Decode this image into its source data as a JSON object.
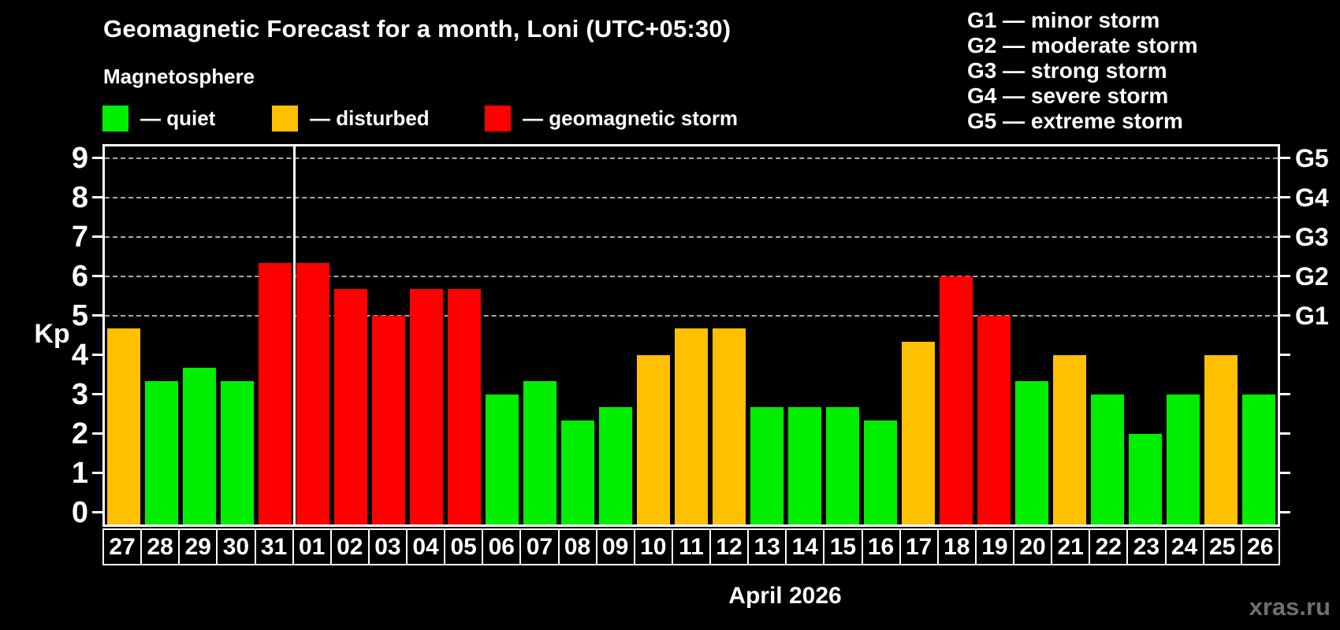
{
  "title": "Geomagnetic Forecast for a month, Loni (UTC+05:30)",
  "subtitle": "Magnetosphere",
  "legend": [
    {
      "key": "quiet",
      "label": "— quiet"
    },
    {
      "key": "disturbed",
      "label": "— disturbed"
    },
    {
      "key": "storm",
      "label": "— geomagnetic storm"
    }
  ],
  "g_legend": [
    {
      "label": "G1 — minor storm"
    },
    {
      "label": "G2 — moderate storm"
    },
    {
      "label": "G3 — strong storm"
    },
    {
      "label": "G4 — severe storm"
    },
    {
      "label": "G5 — extreme storm"
    }
  ],
  "axis": {
    "y_label": "Kp",
    "y_ticks": [
      "0",
      "1",
      "2",
      "3",
      "4",
      "5",
      "6",
      "7",
      "8",
      "9"
    ],
    "right_labels": [
      {
        "label": "G1",
        "kp": 5
      },
      {
        "label": "G2",
        "kp": 6
      },
      {
        "label": "G3",
        "kp": 7
      },
      {
        "label": "G4",
        "kp": 8
      },
      {
        "label": "G5",
        "kp": 9
      }
    ]
  },
  "x_axis_title": "April 2026",
  "watermark": "xras.ru",
  "chart_data": {
    "type": "bar",
    "title": "Geomagnetic Forecast for a month, Loni (UTC+05:30)",
    "xlabel": "April 2026",
    "ylabel": "Kp",
    "ylim": [
      0,
      9
    ],
    "gridlines_at": [
      5,
      6,
      7,
      8,
      9
    ],
    "categories": [
      "27",
      "28",
      "29",
      "30",
      "31",
      "01",
      "02",
      "03",
      "04",
      "05",
      "06",
      "07",
      "08",
      "09",
      "10",
      "11",
      "12",
      "13",
      "14",
      "15",
      "16",
      "17",
      "18",
      "19",
      "20",
      "21",
      "22",
      "23",
      "24",
      "25",
      "26"
    ],
    "values": [
      4.67,
      3.33,
      3.67,
      3.33,
      6.33,
      6.33,
      5.67,
      5.0,
      5.67,
      5.67,
      3.0,
      3.33,
      2.33,
      2.67,
      4.0,
      4.67,
      4.67,
      2.67,
      2.67,
      2.67,
      2.33,
      4.33,
      6.0,
      5.0,
      3.33,
      4.0,
      3.0,
      2.0,
      3.0,
      4.0,
      3.0
    ],
    "statuses": [
      "disturbed",
      "quiet",
      "quiet",
      "quiet",
      "storm",
      "storm",
      "storm",
      "storm",
      "storm",
      "storm",
      "quiet",
      "quiet",
      "quiet",
      "quiet",
      "disturbed",
      "disturbed",
      "disturbed",
      "quiet",
      "quiet",
      "quiet",
      "quiet",
      "disturbed",
      "storm",
      "storm",
      "quiet",
      "disturbed",
      "quiet",
      "quiet",
      "quiet",
      "disturbed",
      "quiet"
    ],
    "status_colors": {
      "quiet": "#00ee00",
      "disturbed": "#ffc000",
      "storm": "#ff0000"
    },
    "month_separator_after": "31"
  }
}
